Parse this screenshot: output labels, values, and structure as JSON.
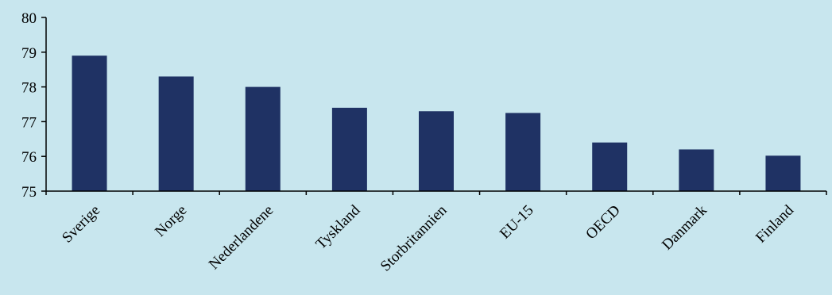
{
  "chart_data": {
    "type": "bar",
    "categories": [
      "Sverige",
      "Norge",
      "Nederlandene",
      "Tyskland",
      "Storbritannien",
      "EU-15",
      "OECD",
      "Danmark",
      "Finland"
    ],
    "values": [
      78.9,
      78.3,
      78.0,
      77.4,
      77.3,
      77.25,
      76.4,
      76.2,
      76.02
    ],
    "title": "",
    "xlabel": "",
    "ylabel": "",
    "ylim": [
      75,
      80
    ],
    "yticks": [
      "75",
      "76",
      "77",
      "78",
      "79",
      "80"
    ],
    "grid": false,
    "legend": "none",
    "colors": {
      "bar": "#1f3264",
      "background": "#c8e6ee",
      "axis": "#000000"
    }
  }
}
